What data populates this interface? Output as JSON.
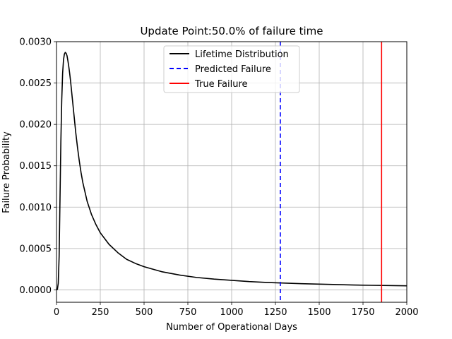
{
  "chart_data": {
    "type": "line",
    "title": "Update Point:50.0% of failure time",
    "xlabel": "Number of Operational Days",
    "ylabel": "Failure Probability",
    "xlim": [
      0,
      2000
    ],
    "ylim": [
      -0.00015,
      0.003
    ],
    "x_ticks": [
      0,
      250,
      500,
      750,
      1000,
      1250,
      1500,
      1750,
      2000
    ],
    "x_tick_labels": [
      "0",
      "250",
      "500",
      "750",
      "1000",
      "1250",
      "1500",
      "1750",
      "2000"
    ],
    "y_ticks": [
      0,
      0.0005,
      0.001,
      0.0015,
      0.002,
      0.0025,
      0.003
    ],
    "y_tick_labels": [
      "0.0000",
      "0.0005",
      "0.0010",
      "0.0015",
      "0.0020",
      "0.0025",
      "0.0030"
    ],
    "grid": true,
    "legend_placement": "top-center",
    "series": [
      {
        "name": "Lifetime Distribution",
        "style": "solid",
        "color": "#000000",
        "x": [
          0,
          5,
          10,
          15,
          20,
          25,
          30,
          35,
          40,
          45,
          50,
          55,
          60,
          65,
          70,
          75,
          80,
          90,
          100,
          110,
          120,
          130,
          140,
          150,
          175,
          200,
          225,
          250,
          300,
          350,
          400,
          450,
          500,
          600,
          700,
          800,
          900,
          1000,
          1100,
          1200,
          1300,
          1400,
          1500,
          1600,
          1700,
          1800,
          1900,
          2000
        ],
        "y": [
          0,
          5e-06,
          8e-05,
          0.0004,
          0.0011,
          0.0018,
          0.0023,
          0.00262,
          0.00278,
          0.00285,
          0.00287,
          0.00286,
          0.00283,
          0.00277,
          0.0027,
          0.00262,
          0.00253,
          0.00232,
          0.00211,
          0.0019,
          0.00172,
          0.00156,
          0.00142,
          0.0013,
          0.00107,
          0.00091,
          0.00079,
          0.00069,
          0.00055,
          0.00045,
          0.00037,
          0.00032,
          0.00028,
          0.00022,
          0.00018,
          0.00015,
          0.00013,
          0.000115,
          0.0001,
          9e-05,
          8.2e-05,
          7.5e-05,
          6.9e-05,
          6.4e-05,
          5.9e-05,
          5.5e-05,
          5.2e-05,
          4.9e-05
        ]
      },
      {
        "name": "Predicted Failure",
        "style": "dashed",
        "color": "#0000ff",
        "x_value": 1278
      },
      {
        "name": "True Failure",
        "style": "solid",
        "color": "#ff0000",
        "x_value": 1856
      }
    ]
  }
}
